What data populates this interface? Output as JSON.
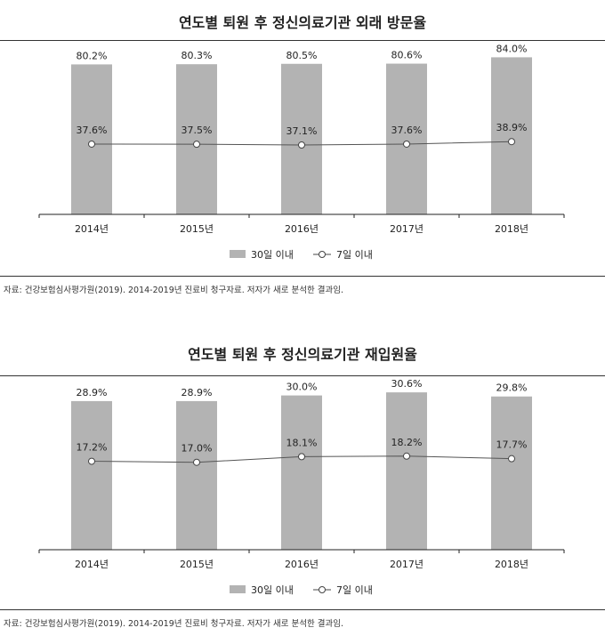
{
  "chart_data": [
    {
      "type": "bar",
      "title": "연도별 퇴원 후 정신의료기관 외래 방문율",
      "categories": [
        "2014년",
        "2015년",
        "2016년",
        "2017년",
        "2018년"
      ],
      "series": [
        {
          "name": "30일 이내",
          "kind": "bar",
          "values": [
            80.2,
            80.3,
            80.5,
            80.6,
            84.0
          ],
          "labels": [
            "80.2%",
            "80.3%",
            "80.5%",
            "80.6%",
            "84.0%"
          ],
          "color": "#b3b3b3"
        },
        {
          "name": "7일 이내",
          "kind": "line",
          "values": [
            37.6,
            37.5,
            37.1,
            37.6,
            38.9
          ],
          "labels": [
            "37.6%",
            "37.5%",
            "37.1%",
            "37.6%",
            "38.9%"
          ],
          "color": "#555555"
        }
      ],
      "ylim": [
        0,
        88
      ],
      "legend": "bottom-center",
      "grid": false,
      "source": "자료: 건강보험심사평가원(2019). 2014-2019년 진료비 청구자료. 저자가 새로 분석한 결과임."
    },
    {
      "type": "bar",
      "title": "연도별 퇴원 후 정신의료기관 재입원율",
      "categories": [
        "2014년",
        "2015년",
        "2016년",
        "2017년",
        "2018년"
      ],
      "series": [
        {
          "name": "30일 이내",
          "kind": "bar",
          "values": [
            28.9,
            28.9,
            30.0,
            30.6,
            29.8
          ],
          "labels": [
            "28.9%",
            "28.9%",
            "30.0%",
            "30.6%",
            "29.8%"
          ],
          "color": "#b3b3b3"
        },
        {
          "name": "7일 이내",
          "kind": "line",
          "values": [
            17.2,
            17.0,
            18.1,
            18.2,
            17.7
          ],
          "labels": [
            "17.2%",
            "17.0%",
            "18.1%",
            "18.2%",
            "17.7%"
          ],
          "color": "#555555"
        }
      ],
      "ylim": [
        0,
        32
      ],
      "legend": "bottom-center",
      "grid": false,
      "source": "자료: 건강보험심사평가원(2019). 2014-2019년 진료비 청구자료. 저자가 새로 분석한 결과임."
    }
  ]
}
